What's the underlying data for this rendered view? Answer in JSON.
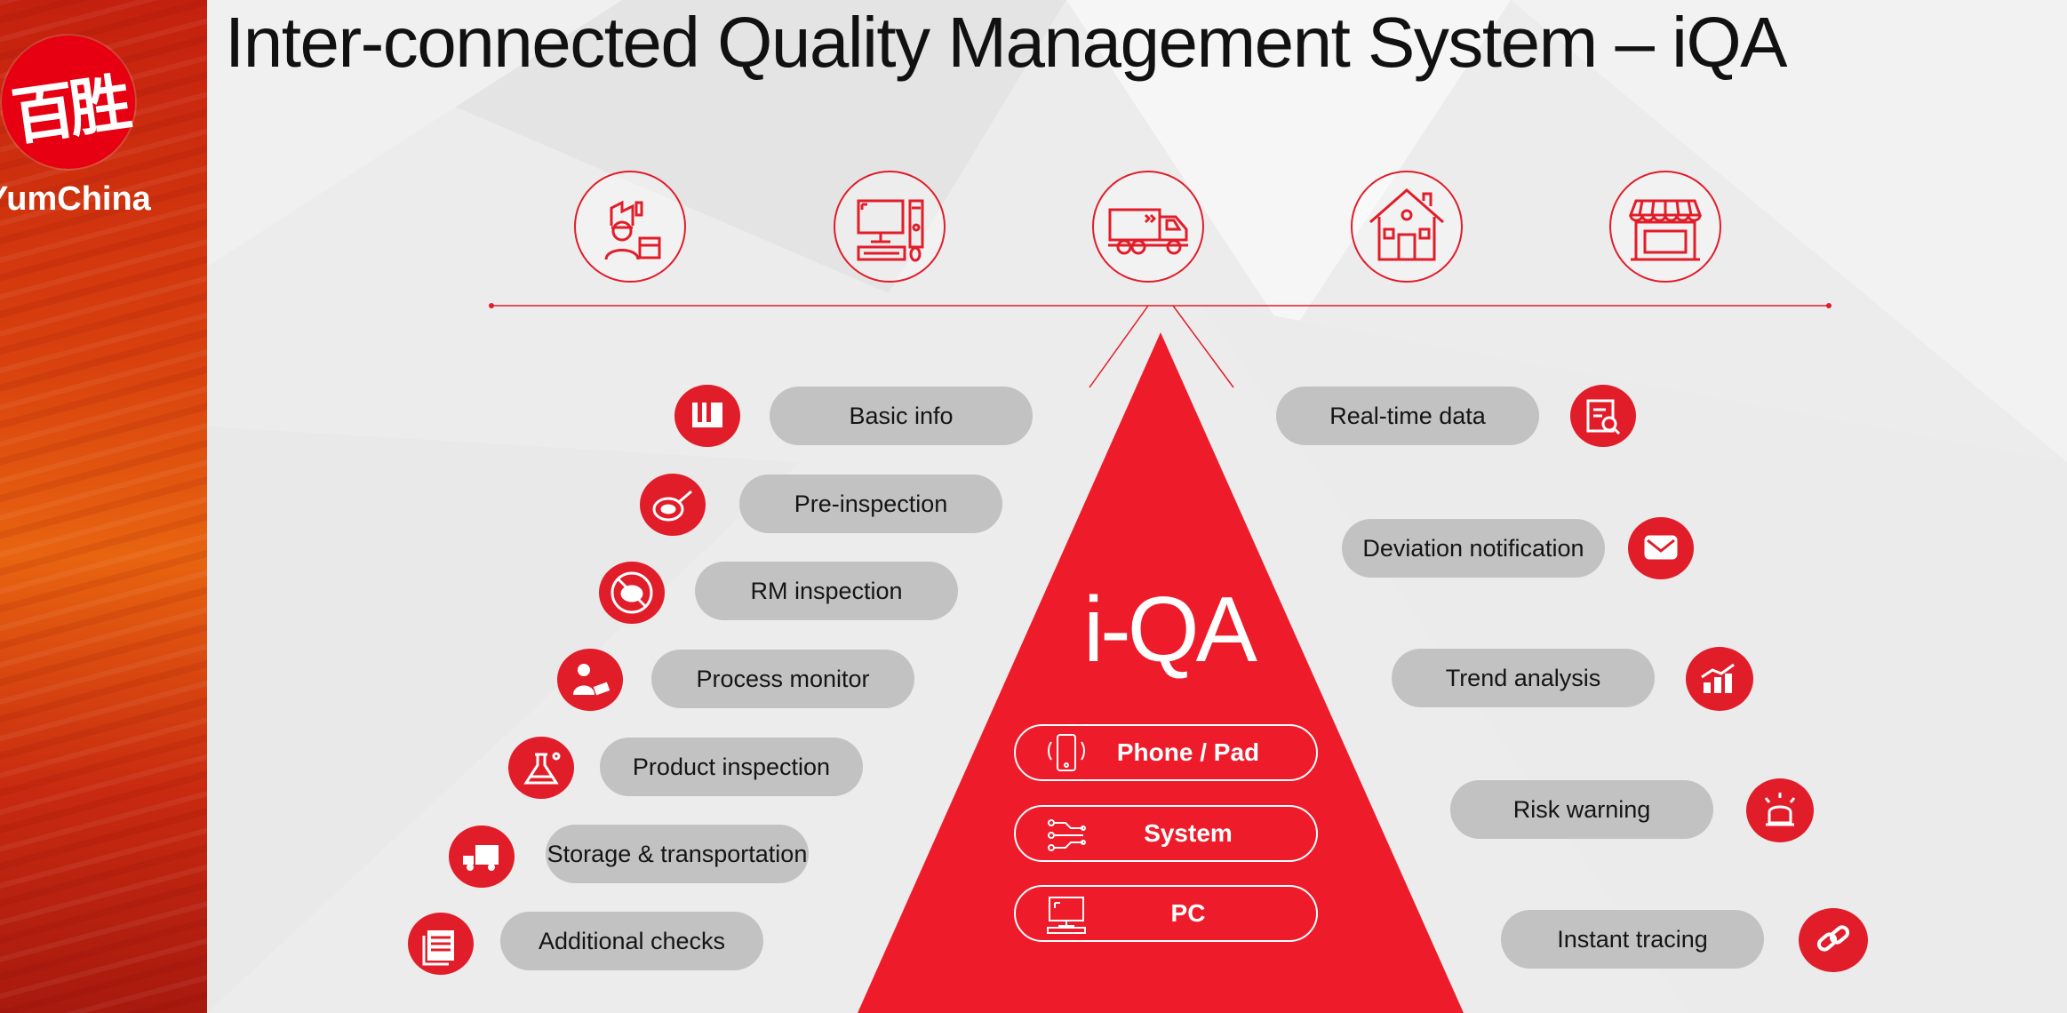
{
  "title": "Inter-connected Quality Management System – iQA",
  "brand": {
    "name": "YumChina",
    "logo_text": "百胜",
    "logo_color": "#e60012"
  },
  "colors": {
    "accent": "#e11d2a",
    "pill": "#c2c2c2",
    "background": "#ececec"
  },
  "supply_chain_icons": [
    "supplier-factory-icon",
    "computer-workstation-icon",
    "delivery-truck-icon",
    "warehouse-house-icon",
    "restaurant-store-icon"
  ],
  "center": {
    "label": "i-QA",
    "platforms": [
      {
        "label": "Phone / Pad",
        "icon": "phone-pad-icon"
      },
      {
        "label": "System",
        "icon": "system-circuit-icon"
      },
      {
        "label": "PC",
        "icon": "pc-monitor-icon"
      }
    ]
  },
  "left_features": [
    {
      "label": "Basic info",
      "icon": "book-icon"
    },
    {
      "label": "Pre-inspection",
      "icon": "frying-pan-icon"
    },
    {
      "label": "RM inspection",
      "icon": "no-meat-icon"
    },
    {
      "label": "Process monitor",
      "icon": "worker-icon"
    },
    {
      "label": "Product inspection",
      "icon": "flask-icon"
    },
    {
      "label": "Storage & transportation",
      "icon": "truck-icon"
    },
    {
      "label": "Additional checks",
      "icon": "documents-icon"
    }
  ],
  "right_features": [
    {
      "label": "Real-time data",
      "icon": "data-search-icon"
    },
    {
      "label": "Deviation notification",
      "icon": "envelope-icon"
    },
    {
      "label": "Trend analysis",
      "icon": "bar-trend-icon"
    },
    {
      "label": "Risk warning",
      "icon": "alarm-light-icon"
    },
    {
      "label": "Instant tracing",
      "icon": "link-icon"
    }
  ]
}
